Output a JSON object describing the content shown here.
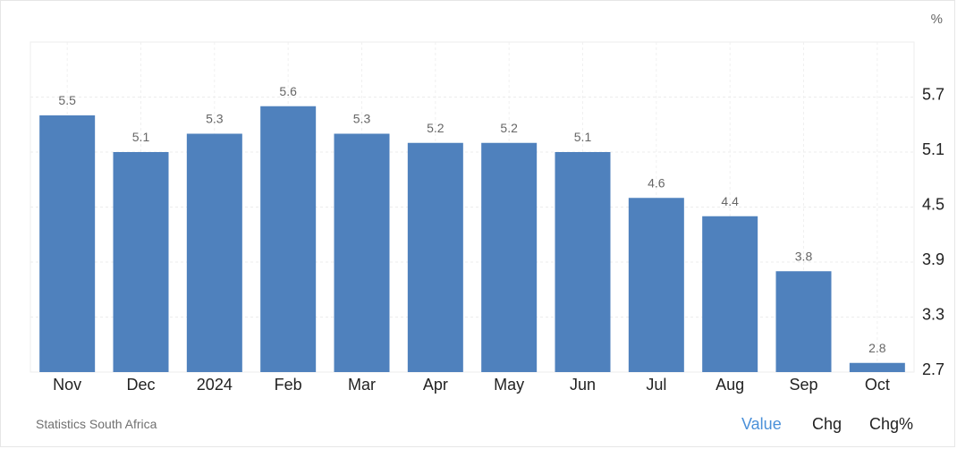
{
  "chart_data": {
    "type": "bar",
    "categories": [
      "Nov",
      "Dec",
      "2024",
      "Feb",
      "Mar",
      "Apr",
      "May",
      "Jun",
      "Jul",
      "Aug",
      "Sep",
      "Oct"
    ],
    "values": [
      5.5,
      5.1,
      5.3,
      5.6,
      5.3,
      5.2,
      5.2,
      5.1,
      4.6,
      4.4,
      3.8,
      2.8
    ],
    "y_ticks": [
      2.7,
      3.3,
      3.9,
      4.5,
      5.1,
      5.7
    ],
    "ylim": [
      2.7,
      6.3
    ],
    "y_unit": "%",
    "bar_color": "#4f81bd",
    "grid": true,
    "y_axis_side": "right"
  },
  "footer": {
    "source": "Statistics South Africa",
    "toggles": {
      "value": "Value",
      "chg": "Chg",
      "chg_pct": "Chg%"
    },
    "active_toggle_color": "#4a90d9"
  }
}
